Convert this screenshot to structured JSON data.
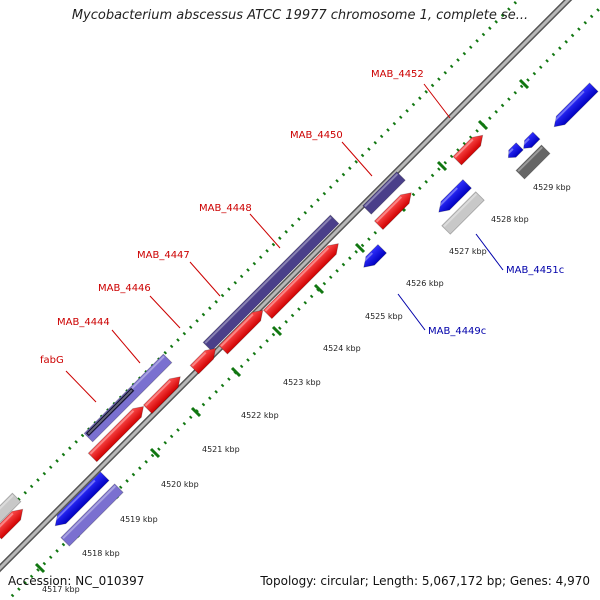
{
  "title": "Mycobacterium abscessus ATCC 19977 chromosome 1, complete se...",
  "footer": {
    "accession": "Accession: NC_010397",
    "summary": "Topology: circular; Length: 5,067,172 bp; Genes: 4,970"
  },
  "colors": {
    "forward_gene": "#ff0000",
    "reverse_gene": "#0000ee",
    "forward_label": "#cc0000",
    "reverse_label": "#0000aa",
    "backbone": "#888888",
    "ticks": "#117711",
    "highlight_purple": "#4a3f8a",
    "highlight_lavender": "#7a70d0",
    "grey_gene": "#c8c8c8",
    "dark_grey_gene": "#666666"
  },
  "scale": {
    "tick_labels": [
      "4517 kbp",
      "4518 kbp",
      "4519 kbp",
      "4520 kbp",
      "4521 kbp",
      "4522 kbp",
      "4523 kbp",
      "4524 kbp",
      "4525 kbp",
      "4526 kbp",
      "4527 kbp",
      "4528 kbp",
      "4529 kbp"
    ]
  },
  "gene_labels": [
    {
      "text": "fabG",
      "strand": "forward"
    },
    {
      "text": "MAB_4444",
      "strand": "forward"
    },
    {
      "text": "MAB_4446",
      "strand": "forward"
    },
    {
      "text": "MAB_4447",
      "strand": "forward"
    },
    {
      "text": "MAB_4448",
      "strand": "forward"
    },
    {
      "text": "MAB_4450",
      "strand": "forward"
    },
    {
      "text": "MAB_4452",
      "strand": "forward"
    },
    {
      "text": "MAB_4449c",
      "strand": "reverse"
    },
    {
      "text": "MAB_4451c",
      "strand": "reverse"
    }
  ]
}
